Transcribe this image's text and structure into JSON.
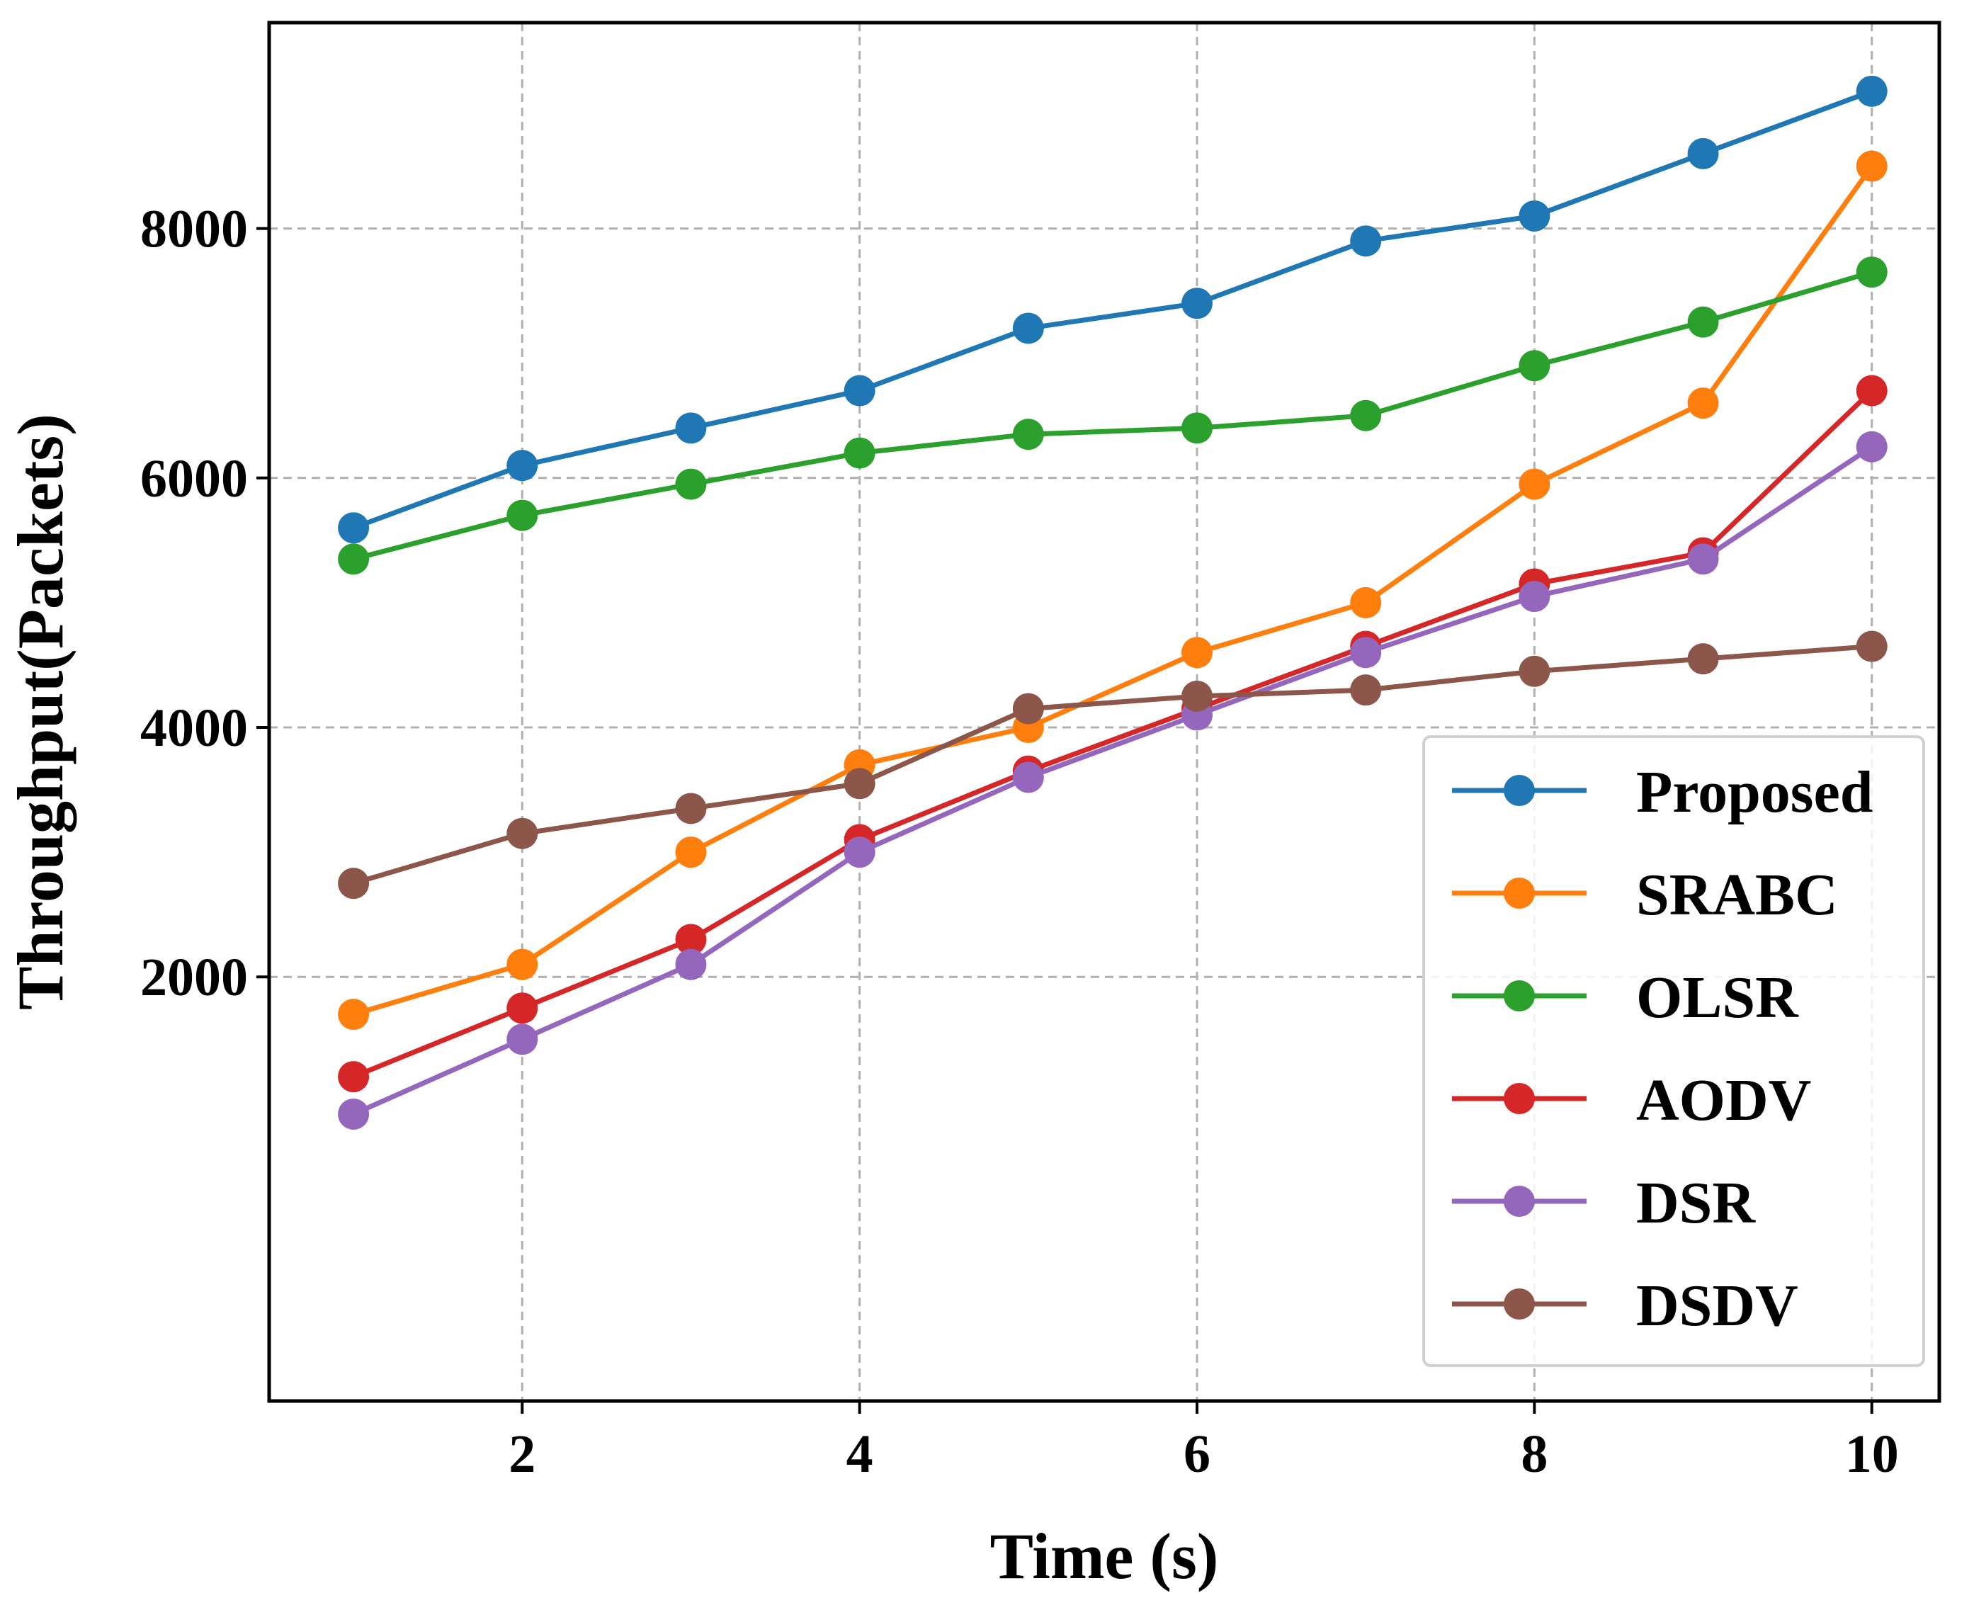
{
  "chart_data": {
    "type": "line",
    "xlabel": "Time (s)",
    "ylabel": "Throughput(Packets)",
    "xlim": [
      0.5,
      10.4
    ],
    "ylim": [
      -1400,
      9650
    ],
    "xticks": [
      2,
      4,
      6,
      8,
      10
    ],
    "yticks": [
      2000,
      4000,
      6000,
      8000
    ],
    "grid": true,
    "legend_position": "lower-right",
    "x": [
      1,
      2,
      3,
      4,
      5,
      6,
      7,
      8,
      9,
      10
    ],
    "series": [
      {
        "name": "Proposed",
        "color": "#1f77b4",
        "values": [
          5600,
          6100,
          6400,
          6700,
          7200,
          7400,
          7900,
          8100,
          8600,
          9100
        ]
      },
      {
        "name": "SRABC",
        "color": "#ff7f0e",
        "values": [
          1700,
          2100,
          3000,
          3700,
          4000,
          4600,
          5000,
          5950,
          6600,
          8500
        ]
      },
      {
        "name": "OLSR",
        "color": "#2ca02c",
        "values": [
          5350,
          5700,
          5950,
          6200,
          6350,
          6400,
          6500,
          6900,
          7250,
          7650
        ]
      },
      {
        "name": "AODV",
        "color": "#d62728",
        "values": [
          1200,
          1750,
          2300,
          3100,
          3650,
          4150,
          4650,
          5150,
          5400,
          6700
        ]
      },
      {
        "name": "DSR",
        "color": "#9467bd",
        "values": [
          900,
          1500,
          2100,
          3000,
          3600,
          4100,
          4600,
          5050,
          5350,
          6250
        ]
      },
      {
        "name": "DSDV",
        "color": "#8c564b",
        "values": [
          2750,
          3150,
          3350,
          3550,
          4150,
          4250,
          4300,
          4450,
          4550,
          4650
        ]
      }
    ]
  }
}
